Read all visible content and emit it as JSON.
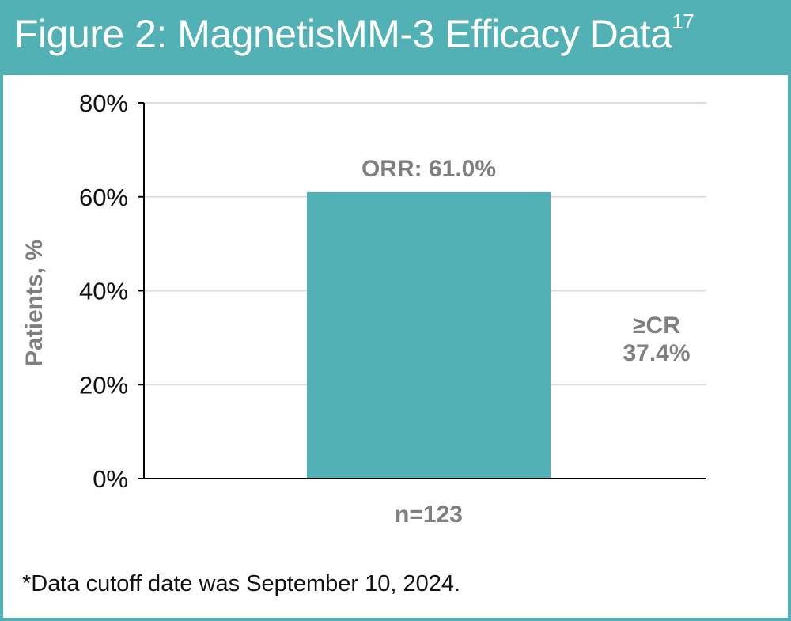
{
  "header": {
    "title": "Figure 2: MagnetisMM-3 Efficacy Data",
    "superscript": "17"
  },
  "colors": {
    "header": "#52b1b5",
    "bar": "#52b1b5",
    "label": "#7f7f7f",
    "grid": "#dddddd"
  },
  "chart_data": {
    "type": "bar",
    "categories": [
      "n=123"
    ],
    "values": [
      61.0
    ],
    "bar_label": "ORR: 61.0%",
    "annotation": {
      "line1": "≥CR",
      "line2": "37.4%",
      "value": 37.4
    },
    "ylabel": "Patients, %",
    "xlabel": "",
    "ylim": [
      0,
      80
    ],
    "yticks": [
      0,
      20,
      40,
      60,
      80
    ],
    "ytick_labels": [
      "0%",
      "20%",
      "40%",
      "60%",
      "80%"
    ],
    "grid": true
  },
  "footnote": "*Data cutoff date was September 10, 2024."
}
